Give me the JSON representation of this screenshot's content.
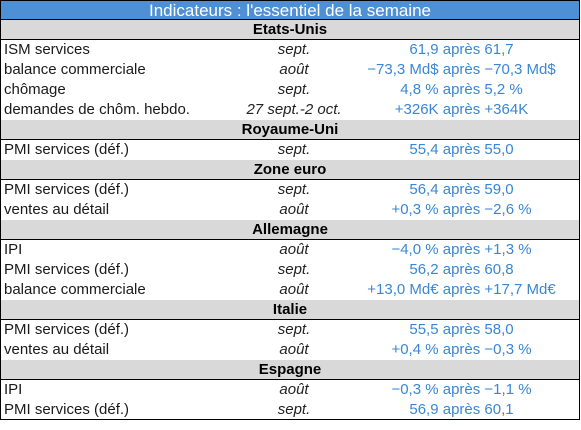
{
  "title": "Indicateurs : l'essentiel de la semaine",
  "sections": [
    {
      "name": "Etats-Unis",
      "rows": [
        {
          "indicator": "ISM services",
          "period": "sept.",
          "value": "61,9 après 61,7"
        },
        {
          "indicator": "balance commerciale",
          "period": "août",
          "value": "−73,3 Md$ après −70,3 Md$"
        },
        {
          "indicator": "chômage",
          "period": "sept.",
          "value": "4,8 % après 5,2 %"
        },
        {
          "indicator": "demandes de chôm. hebdo.",
          "period": "27 sept.-2 oct.",
          "value": "+326K après +364K"
        }
      ]
    },
    {
      "name": "Royaume-Uni",
      "rows": [
        {
          "indicator": "PMI services (déf.)",
          "period": "sept.",
          "value": "55,4 après 55,0"
        }
      ]
    },
    {
      "name": "Zone euro",
      "rows": [
        {
          "indicator": "PMI services (déf.)",
          "period": "sept.",
          "value": "56,4 après 59,0"
        },
        {
          "indicator": "ventes au détail",
          "period": "août",
          "value": "+0,3 % après −2,6 %"
        }
      ]
    },
    {
      "name": "Allemagne",
      "rows": [
        {
          "indicator": "IPI",
          "period": "août",
          "value": "−4,0 % après +1,3 %"
        },
        {
          "indicator": "PMI services (déf.)",
          "period": "sept.",
          "value": "56,2 après 60,8"
        },
        {
          "indicator": "balance commerciale",
          "period": "août",
          "value": "+13,0 Md€ après +17,7 Md€"
        }
      ]
    },
    {
      "name": "Italie",
      "rows": [
        {
          "indicator": "PMI services (déf.)",
          "period": "sept.",
          "value": "55,5 après 58,0"
        },
        {
          "indicator": "ventes au détail",
          "period": "août",
          "value": "+0,4 % après −0,3 %"
        }
      ]
    },
    {
      "name": "Espagne",
      "rows": [
        {
          "indicator": "IPI",
          "period": "août",
          "value": "−0,3 % après −1,1 %"
        },
        {
          "indicator": "PMI services (déf.)",
          "period": "sept.",
          "value": "56,9 après 60,1"
        }
      ]
    }
  ]
}
